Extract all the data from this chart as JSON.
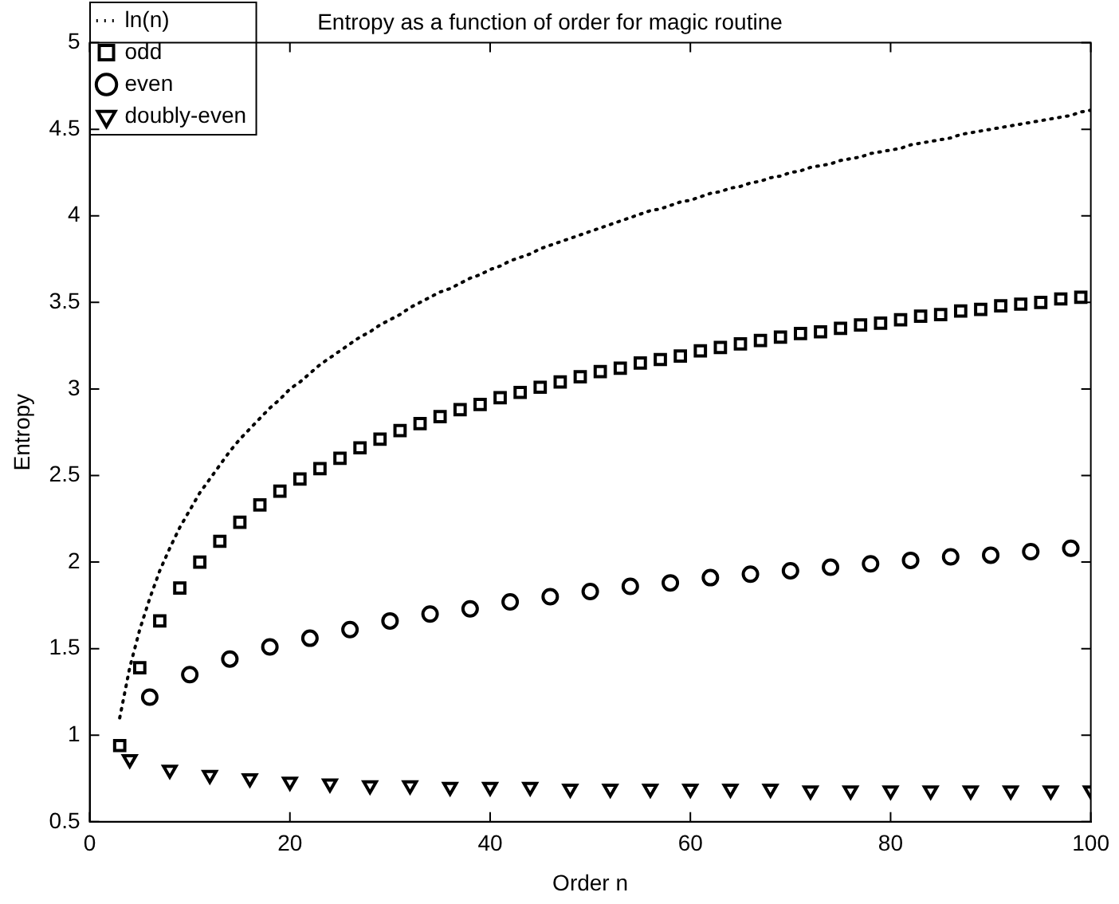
{
  "chart_data": {
    "type": "scatter",
    "title": "Entropy as a function of order for magic routine",
    "xlabel": "Order n",
    "ylabel": "Entropy",
    "xlim": [
      0,
      100
    ],
    "xticks": [
      0,
      20,
      40,
      60,
      80,
      100
    ],
    "ylim": [
      0.5,
      5
    ],
    "yticks": [
      0.5,
      1,
      1.5,
      2,
      2.5,
      3,
      3.5,
      4,
      4.5,
      5
    ],
    "grid": false,
    "legend": "top left",
    "series": [
      {
        "name": "ln(n)",
        "type": "line",
        "line_style": "dotted",
        "marker": "none",
        "color": "#000000",
        "x": [
          3,
          4,
          5,
          6,
          7,
          8,
          9,
          10,
          11,
          12,
          13,
          14,
          15,
          16,
          17,
          18,
          19,
          20,
          21,
          22,
          23,
          24,
          25,
          26,
          27,
          28,
          29,
          30,
          31,
          32,
          33,
          34,
          35,
          36,
          37,
          38,
          39,
          40,
          41,
          42,
          43,
          44,
          45,
          46,
          47,
          48,
          49,
          50,
          51,
          52,
          53,
          54,
          55,
          56,
          57,
          58,
          59,
          60,
          61,
          62,
          63,
          64,
          65,
          66,
          67,
          68,
          69,
          70,
          71,
          72,
          73,
          74,
          75,
          76,
          77,
          78,
          79,
          80,
          81,
          82,
          83,
          84,
          85,
          86,
          87,
          88,
          89,
          90,
          91,
          92,
          93,
          94,
          95,
          96,
          97,
          98,
          99,
          100
        ],
        "values": [
          1.1,
          1.39,
          1.61,
          1.79,
          1.95,
          2.08,
          2.2,
          2.3,
          2.4,
          2.48,
          2.56,
          2.64,
          2.71,
          2.77,
          2.83,
          2.89,
          2.94,
          3.0,
          3.04,
          3.09,
          3.14,
          3.18,
          3.22,
          3.26,
          3.3,
          3.33,
          3.37,
          3.4,
          3.43,
          3.47,
          3.5,
          3.53,
          3.56,
          3.58,
          3.61,
          3.64,
          3.66,
          3.69,
          3.71,
          3.74,
          3.76,
          3.78,
          3.81,
          3.83,
          3.85,
          3.87,
          3.89,
          3.91,
          3.93,
          3.95,
          3.97,
          3.99,
          4.01,
          4.03,
          4.04,
          4.06,
          4.08,
          4.09,
          4.11,
          4.13,
          4.14,
          4.16,
          4.17,
          4.19,
          4.2,
          4.22,
          4.23,
          4.25,
          4.26,
          4.28,
          4.29,
          4.3,
          4.32,
          4.33,
          4.34,
          4.36,
          4.37,
          4.38,
          4.39,
          4.41,
          4.42,
          4.43,
          4.44,
          4.45,
          4.47,
          4.48,
          4.49,
          4.5,
          4.51,
          4.52,
          4.53,
          4.54,
          4.55,
          4.56,
          4.57,
          4.58,
          4.6,
          4.61
        ]
      },
      {
        "name": "odd",
        "marker": "square",
        "color": "#000000",
        "x": [
          3,
          5,
          7,
          9,
          11,
          13,
          15,
          17,
          19,
          21,
          23,
          25,
          27,
          29,
          31,
          33,
          35,
          37,
          39,
          41,
          43,
          45,
          47,
          49,
          51,
          53,
          55,
          57,
          59,
          61,
          63,
          65,
          67,
          69,
          71,
          73,
          75,
          77,
          79,
          81,
          83,
          85,
          87,
          89,
          91,
          93,
          95,
          97,
          99
        ],
        "values": [
          0.94,
          1.39,
          1.66,
          1.85,
          2.0,
          2.12,
          2.23,
          2.33,
          2.41,
          2.48,
          2.54,
          2.6,
          2.66,
          2.71,
          2.76,
          2.8,
          2.84,
          2.88,
          2.91,
          2.95,
          2.98,
          3.01,
          3.04,
          3.07,
          3.1,
          3.12,
          3.15,
          3.17,
          3.19,
          3.22,
          3.24,
          3.26,
          3.28,
          3.3,
          3.32,
          3.33,
          3.35,
          3.37,
          3.38,
          3.4,
          3.42,
          3.43,
          3.45,
          3.46,
          3.48,
          3.49,
          3.5,
          3.52,
          3.53
        ]
      },
      {
        "name": "even",
        "marker": "circle",
        "color": "#000000",
        "x": [
          6,
          10,
          14,
          18,
          22,
          26,
          30,
          34,
          38,
          42,
          46,
          50,
          54,
          58,
          62,
          66,
          70,
          74,
          78,
          82,
          86,
          90,
          94,
          98
        ],
        "values": [
          1.22,
          1.35,
          1.44,
          1.51,
          1.56,
          1.61,
          1.66,
          1.7,
          1.73,
          1.77,
          1.8,
          1.83,
          1.86,
          1.88,
          1.91,
          1.93,
          1.95,
          1.97,
          1.99,
          2.01,
          2.03,
          2.04,
          2.06,
          2.08
        ]
      },
      {
        "name": "doubly-even",
        "marker": "triangle",
        "color": "#000000",
        "x": [
          4,
          8,
          12,
          16,
          20,
          24,
          28,
          32,
          36,
          40,
          44,
          48,
          52,
          56,
          60,
          64,
          68,
          72,
          76,
          80,
          84,
          88,
          92,
          96,
          100
        ],
        "values": [
          0.86,
          0.8,
          0.77,
          0.75,
          0.73,
          0.72,
          0.71,
          0.71,
          0.7,
          0.7,
          0.7,
          0.69,
          0.69,
          0.69,
          0.69,
          0.69,
          0.69,
          0.68,
          0.68,
          0.68,
          0.68,
          0.68,
          0.68,
          0.68,
          0.68
        ]
      }
    ]
  }
}
